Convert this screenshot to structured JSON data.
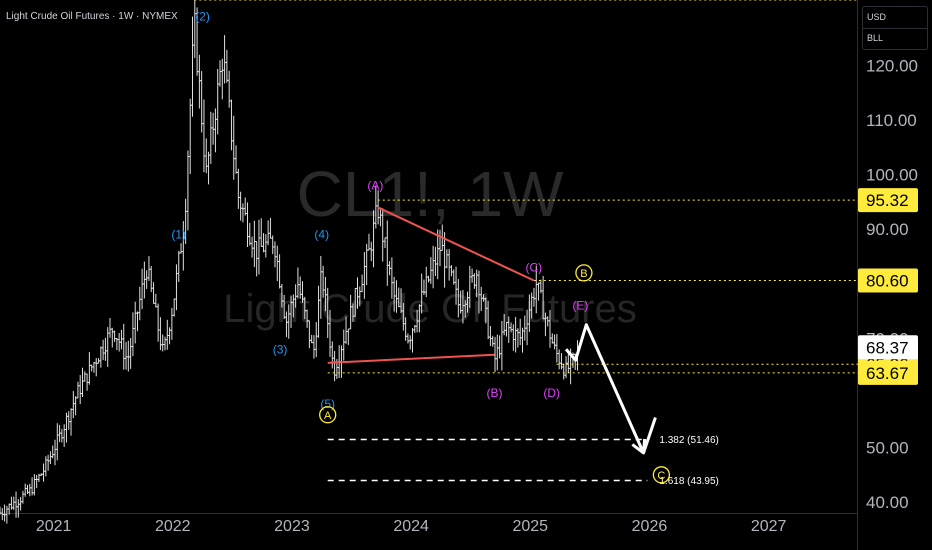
{
  "header": {
    "title": "Light Crude Oil Futures · 1W · NYMEX"
  },
  "currency": {
    "primary": "USD",
    "secondary": "BLL"
  },
  "watermark": {
    "symbol": "CL1!, 1W",
    "name": "Light Crude Oil Futures"
  },
  "colors": {
    "background": "#000000",
    "candles": "#e0e0e0",
    "wave_blue": "#2196f3",
    "wave_magenta": "#e040fb",
    "wave_yellow": "#ffeb3b",
    "trendline": "#ef5350",
    "level_line": "#ffeb3b",
    "projection": "#ffffff",
    "last_price_bg": "#ffffff",
    "level_label_bg": "#ffeb3b"
  },
  "chart_data": {
    "type": "candlestick",
    "timeframe": "1W",
    "x_axis": {
      "ticks": [
        "2021",
        "2022",
        "2023",
        "2024",
        "2025",
        "2026",
        "2027"
      ],
      "range": [
        2020.55,
        2027.75
      ]
    },
    "y_axis": {
      "ticks": [
        40,
        50,
        70,
        90,
        100,
        110,
        120
      ],
      "tick_labels": [
        "40.00",
        "50.00",
        "70.00",
        "90.00",
        "100.00",
        "110.00",
        "120.00"
      ],
      "range": [
        38,
        132
      ]
    },
    "price_path": [
      [
        2020.55,
        38
      ],
      [
        2020.8,
        42
      ],
      [
        2020.92,
        46
      ],
      [
        2021.05,
        52
      ],
      [
        2021.2,
        60
      ],
      [
        2021.35,
        66
      ],
      [
        2021.5,
        72
      ],
      [
        2021.62,
        66
      ],
      [
        2021.78,
        83
      ],
      [
        2021.92,
        67
      ],
      [
        2022.0,
        76
      ],
      [
        2022.1,
        92
      ],
      [
        2022.18,
        128
      ],
      [
        2022.28,
        100
      ],
      [
        2022.42,
        122
      ],
      [
        2022.55,
        96
      ],
      [
        2022.7,
        86
      ],
      [
        2022.85,
        88
      ],
      [
        2022.95,
        73
      ],
      [
        2023.05,
        80
      ],
      [
        2023.18,
        67
      ],
      [
        2023.25,
        82
      ],
      [
        2023.35,
        64
      ],
      [
        2023.5,
        75
      ],
      [
        2023.65,
        86
      ],
      [
        2023.72,
        94
      ],
      [
        2023.85,
        78
      ],
      [
        2023.98,
        70
      ],
      [
        2024.1,
        78
      ],
      [
        2024.25,
        87
      ],
      [
        2024.4,
        76
      ],
      [
        2024.55,
        82
      ],
      [
        2024.7,
        66
      ],
      [
        2024.8,
        72
      ],
      [
        2024.92,
        70
      ],
      [
        2025.05,
        80
      ],
      [
        2025.2,
        68
      ],
      [
        2025.3,
        64
      ],
      [
        2025.4,
        67
      ]
    ],
    "wave_labels": [
      {
        "text": "(1)",
        "x": 2022.05,
        "y": 89,
        "color": "blue"
      },
      {
        "text": "(2)",
        "x": 2022.25,
        "y": 129,
        "color": "blue"
      },
      {
        "text": "(3)",
        "x": 2022.9,
        "y": 68,
        "color": "blue"
      },
      {
        "text": "(4)",
        "x": 2023.25,
        "y": 89,
        "color": "blue"
      },
      {
        "text": "(5)",
        "x": 2023.3,
        "y": 58,
        "color": "blue"
      },
      {
        "text": "A",
        "x": 2023.3,
        "y": 56,
        "color": "yellow",
        "circled": true
      },
      {
        "text": "(A)",
        "x": 2023.7,
        "y": 98,
        "color": "magenta"
      },
      {
        "text": "(B)",
        "x": 2024.7,
        "y": 60,
        "color": "magenta"
      },
      {
        "text": "(C)",
        "x": 2025.03,
        "y": 83,
        "color": "magenta"
      },
      {
        "text": "(D)",
        "x": 2025.18,
        "y": 60,
        "color": "magenta"
      },
      {
        "text": "(E)",
        "x": 2025.42,
        "y": 76,
        "color": "magenta"
      },
      {
        "text": "B",
        "x": 2025.45,
        "y": 82,
        "color": "yellow",
        "circled": true
      },
      {
        "text": "C",
        "x": 2026.1,
        "y": 45,
        "color": "yellow",
        "circled": true
      }
    ],
    "trendlines": [
      {
        "from": [
          2023.72,
          94
        ],
        "to": [
          2025.03,
          80.6
        ],
        "color": "red"
      },
      {
        "from": [
          2023.3,
          65.5
        ],
        "to": [
          2024.7,
          67.0
        ],
        "color": "red"
      }
    ],
    "projection_path": [
      [
        2025.3,
        68
      ],
      [
        2025.38,
        66
      ],
      [
        2025.47,
        72.5
      ],
      [
        2025.95,
        49
      ]
    ],
    "horizontal_levels": [
      {
        "value": 95.32,
        "label": "95.32",
        "style": "dotted-yellow"
      },
      {
        "value": 80.6,
        "label": "80.60",
        "style": "dotted-yellow"
      },
      {
        "value": 65.26,
        "label": "65.26",
        "style": "dotted-yellow"
      },
      {
        "value": 63.67,
        "label": "63.67",
        "style": "dotted-yellow"
      }
    ],
    "top_dotted_level": 132,
    "last_price": {
      "value": 68.37,
      "label": "68.37"
    },
    "fib_levels": [
      {
        "value": 51.46,
        "label": "1.382 (51.46)",
        "x_start": 2023.3,
        "x_end": 2026.1
      },
      {
        "value": 43.95,
        "label": "1.618 (43.95)",
        "x_start": 2023.3,
        "x_end": 2026.1
      }
    ]
  }
}
